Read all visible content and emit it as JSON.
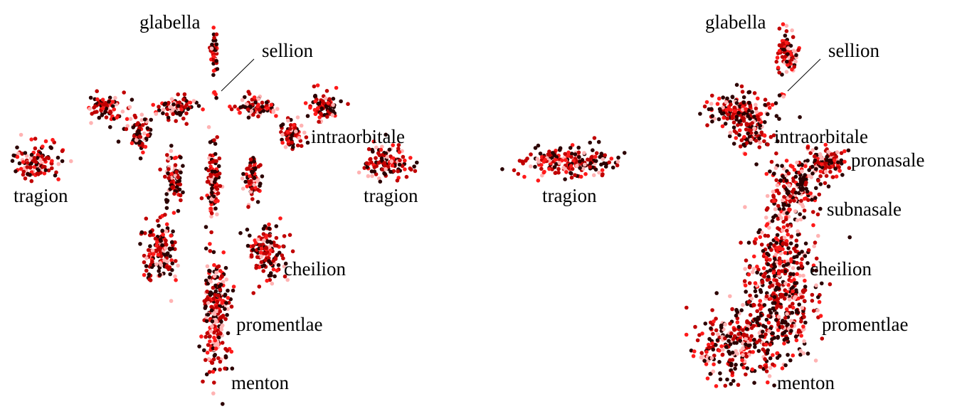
{
  "colors": {
    "dark": "#2b0000",
    "mid": "#c00000",
    "bright": "#ff1a1a",
    "light": "#ffb3b3"
  },
  "frontal": {
    "labels": {
      "glabella": "glabella",
      "sellion": "sellion",
      "intraorbitale": "intraorbitale",
      "tragion_left": "tragion",
      "tragion_right": "tragion",
      "cheilion": "cheilion",
      "promentlae": "promentlae",
      "menton": "menton"
    }
  },
  "profile": {
    "labels": {
      "glabella": "glabella",
      "sellion": "sellion",
      "intraorbitale": "intraorbitale",
      "tragion": "tragion",
      "pronasale": "pronasale",
      "subnasale": "subnasale",
      "cheilion": "cheilion",
      "promentlae": "promentlae",
      "menton": "menton"
    }
  }
}
